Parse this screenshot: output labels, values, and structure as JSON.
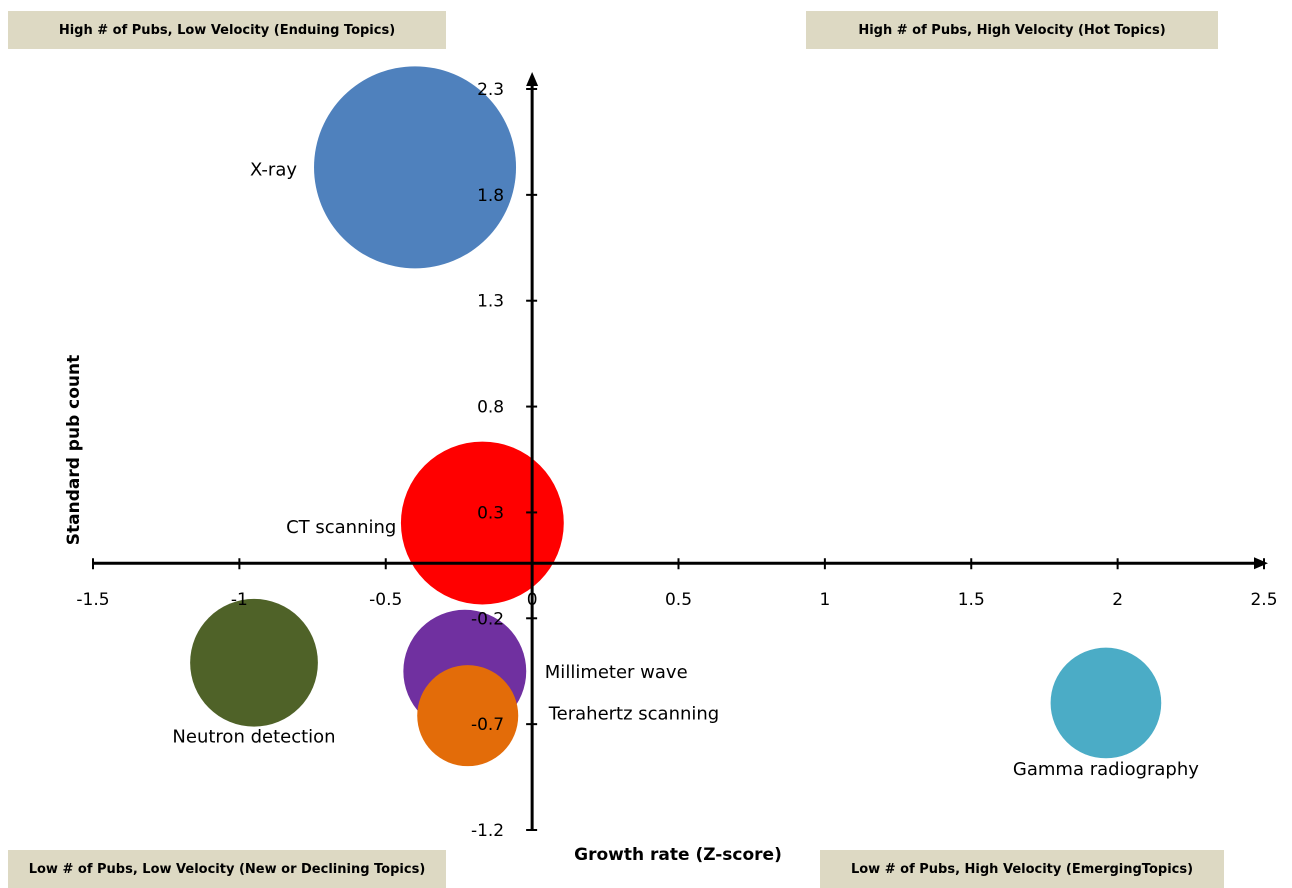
{
  "quadrants": {
    "top_left": "High # of Pubs, Low Velocity (Enduing Topics)",
    "top_right": "High # of Pubs, High Velocity (Hot Topics)",
    "bottom_left": "Low # of Pubs, Low Velocity (New or Declining Topics)",
    "bottom_right": "Low # of Pubs, High Velocity (EmergingTopics)"
  },
  "chart_data": {
    "type": "scatter",
    "title": "",
    "xlabel": "Growth rate (Z-score)",
    "ylabel": "Standard pub count",
    "xlim": [
      -1.5,
      2.5
    ],
    "ylim": [
      -1.2,
      2.3
    ],
    "x_ticks": [
      "-1.5",
      "-1",
      "-0.5",
      "0",
      "0.5",
      "1",
      "1.5",
      "2",
      "2.5"
    ],
    "y_ticks": [
      "2.3",
      "1.8",
      "1.3",
      "0.8",
      "0.3",
      "-0.2",
      "-0.7",
      "-1.2"
    ],
    "grid": false,
    "legend": "none",
    "points": [
      {
        "label": "X-ray",
        "x": -0.4,
        "y": 1.93,
        "size": 100,
        "color": "#4f81bd"
      },
      {
        "label": "CT scanning",
        "x": -0.17,
        "y": 0.25,
        "size": 65,
        "color": "#ff0000"
      },
      {
        "label": "Neutron detection",
        "x": -0.95,
        "y": -0.41,
        "size": 40,
        "color": "#4f6228"
      },
      {
        "label": "Millimeter wave",
        "x": -0.23,
        "y": -0.45,
        "size": 37,
        "color": "#7030a0"
      },
      {
        "label": "Terahertz scanning",
        "x": -0.22,
        "y": -0.66,
        "size": 25,
        "color": "#e36c09"
      },
      {
        "label": "Gamma radiography",
        "x": 1.96,
        "y": -0.6,
        "size": 30,
        "color": "#4bacc6"
      }
    ]
  }
}
